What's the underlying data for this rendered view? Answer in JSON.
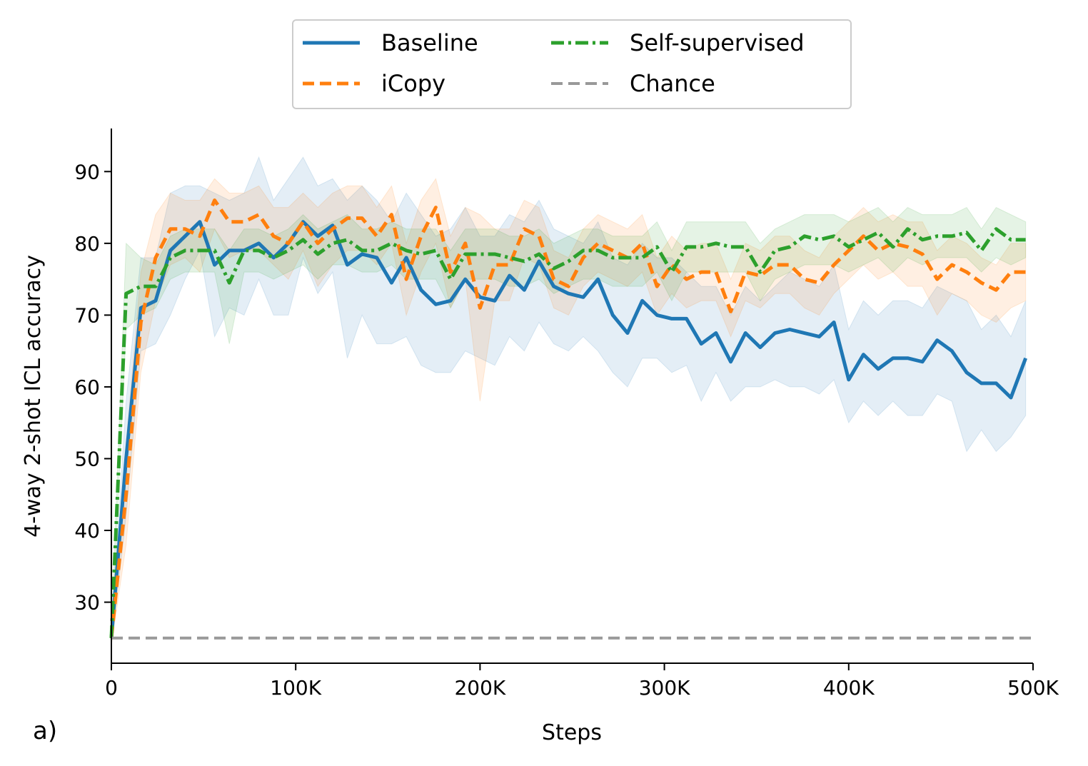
{
  "chart_data": {
    "type": "line",
    "panel_label": "a)",
    "xlabel": "Steps",
    "ylabel": "4-way 2-shot ICL accuracy",
    "xlim": [
      0,
      500000
    ],
    "ylim": [
      21.5,
      96
    ],
    "x_ticks": [
      0,
      100000,
      200000,
      300000,
      400000,
      500000
    ],
    "x_tick_labels": [
      "0",
      "100K",
      "200K",
      "300K",
      "400K",
      "500K"
    ],
    "y_ticks": [
      30,
      40,
      50,
      60,
      70,
      80,
      90
    ],
    "y_tick_labels": [
      "30",
      "40",
      "50",
      "60",
      "70",
      "80",
      "90"
    ],
    "grid": false,
    "legend_position": "top-center",
    "x": [
      0,
      8000,
      16000,
      24000,
      32000,
      40000,
      48000,
      56000,
      64000,
      72000,
      80000,
      88000,
      96000,
      104000,
      112000,
      120000,
      128000,
      136000,
      144000,
      152000,
      160000,
      168000,
      176000,
      184000,
      192000,
      200000,
      208000,
      216000,
      224000,
      232000,
      240000,
      248000,
      256000,
      264000,
      272000,
      280000,
      288000,
      296000,
      304000,
      312000,
      320000,
      328000,
      336000,
      344000,
      352000,
      360000,
      368000,
      376000,
      384000,
      392000,
      400000,
      408000,
      416000,
      424000,
      432000,
      440000,
      448000,
      456000,
      464000,
      472000,
      480000,
      488000,
      496000
    ],
    "series": [
      {
        "name": "Baseline",
        "color": "#1f77b4",
        "style": "solid",
        "values": [
          25,
          50,
          71,
          72,
          79,
          81,
          83,
          77,
          79,
          79,
          80,
          78,
          80,
          83,
          81,
          82.5,
          77,
          78.5,
          78,
          74.5,
          78,
          73.5,
          71.5,
          72,
          75,
          72.5,
          72,
          75.5,
          73.5,
          77.5,
          74,
          73,
          72.5,
          75,
          70,
          67.5,
          72,
          70,
          69.5,
          69.5,
          66,
          67.5,
          63.5,
          67.5,
          65.5,
          67.5,
          68,
          67.5,
          67,
          69,
          61,
          64.5,
          62.5,
          64,
          64,
          63.5,
          66.5,
          65,
          62,
          60.5,
          60.5,
          58.5,
          64
        ],
        "band_lower": [
          24,
          42,
          65,
          66,
          70,
          75,
          79,
          67,
          71,
          70,
          75,
          70,
          70,
          78,
          73,
          76,
          64,
          70,
          66,
          66,
          67,
          63,
          62,
          62,
          65,
          64,
          63,
          67,
          65,
          69,
          66,
          65,
          67,
          65,
          62,
          60,
          64,
          64,
          62,
          63,
          58,
          62,
          58,
          60,
          60,
          61,
          60,
          60,
          59,
          61,
          55,
          58,
          56,
          58,
          56,
          56,
          59,
          58,
          51,
          54,
          51,
          53,
          56
        ],
        "band_upper": [
          26,
          58,
          78,
          78,
          87,
          88,
          88,
          87,
          86,
          87,
          92,
          86,
          89,
          92,
          88,
          89,
          86,
          88,
          86,
          83,
          87,
          84,
          81,
          82,
          85,
          81,
          81,
          84,
          83,
          86,
          82,
          81,
          80,
          83,
          78,
          77,
          80,
          78,
          78,
          76,
          74,
          74,
          70,
          74,
          72,
          74,
          76,
          75,
          74,
          77,
          68,
          72,
          70,
          72,
          72,
          71,
          74,
          73,
          72,
          68,
          70,
          67,
          72
        ]
      },
      {
        "name": "iCopy",
        "color": "#ff7f0e",
        "style": "dashed",
        "values": [
          25,
          45,
          69,
          78,
          82,
          82,
          81,
          86,
          83,
          83,
          84,
          81,
          80,
          83,
          80,
          82,
          83.5,
          83.5,
          81,
          84,
          75,
          81,
          85,
          76,
          80,
          71,
          77,
          77,
          82,
          81,
          75,
          74,
          78,
          80,
          79,
          78,
          80,
          74,
          77,
          75,
          76,
          76,
          70.5,
          76,
          75.5,
          77,
          77,
          75,
          74.5,
          77,
          79,
          81,
          79,
          80,
          79.5,
          78.5,
          75,
          77,
          76,
          74.5,
          73.5,
          76,
          76
        ],
        "band_lower": [
          24,
          38,
          62,
          72,
          77,
          78,
          76,
          82,
          78,
          79,
          79,
          77,
          75,
          79,
          74,
          77,
          79,
          79,
          77,
          80,
          70,
          76,
          80,
          71,
          75,
          58,
          72,
          72,
          78,
          77,
          71,
          70,
          74,
          76,
          75,
          74,
          76,
          70,
          73,
          71,
          72,
          72,
          67,
          72,
          71,
          73,
          73,
          71,
          70,
          73,
          75,
          77,
          75,
          76,
          74,
          74,
          70,
          73,
          72,
          70,
          69,
          71,
          72
        ],
        "band_upper": [
          26,
          52,
          76,
          84,
          87,
          86,
          86,
          89,
          87,
          87,
          88,
          85,
          85,
          87,
          85,
          87,
          88,
          88,
          85,
          88,
          80,
          86,
          89,
          81,
          85,
          84,
          82,
          82,
          86,
          85,
          79,
          78,
          82,
          84,
          83,
          82,
          84,
          78,
          81,
          79,
          80,
          80,
          75,
          80,
          79,
          81,
          81,
          79,
          78,
          81,
          83,
          85,
          83,
          84,
          83,
          83,
          79,
          81,
          80,
          78,
          77,
          80,
          80
        ]
      },
      {
        "name": "Self-supervised",
        "color": "#2ca02c",
        "style": "dashdot",
        "values": [
          25,
          73,
          74,
          74,
          78,
          79,
          79,
          79,
          74.5,
          79,
          79,
          78,
          79,
          80.5,
          78.5,
          80,
          80.5,
          79,
          79,
          80,
          79,
          78.5,
          79,
          75,
          78.5,
          78.5,
          78.5,
          78,
          77.5,
          78.5,
          76.5,
          77.5,
          79,
          79,
          78,
          78,
          78,
          79.5,
          76,
          79.5,
          79.5,
          80,
          79.5,
          79.5,
          76,
          79,
          79.5,
          81,
          80.5,
          81,
          79.5,
          80.5,
          81.5,
          79.5,
          82,
          80.5,
          81,
          81,
          81.5,
          79,
          82,
          80.5,
          80.5
        ],
        "band_lower": [
          24,
          68,
          70,
          71,
          75,
          76,
          76,
          76,
          66,
          76,
          76,
          75,
          76,
          77,
          75,
          77,
          77,
          76,
          76,
          77,
          75,
          75,
          75,
          71,
          75,
          75,
          75,
          74,
          74,
          75,
          73,
          74,
          75,
          75,
          74,
          74,
          74,
          76,
          72,
          76,
          76,
          76,
          76,
          76,
          72,
          75,
          76,
          77,
          77,
          77,
          76,
          77,
          78,
          76,
          78,
          77,
          78,
          78,
          78,
          76,
          78,
          77,
          78
        ],
        "band_upper": [
          26,
          80,
          78,
          77,
          81,
          82,
          82,
          82,
          79,
          82,
          82,
          81,
          82,
          84,
          82,
          83,
          84,
          82,
          82,
          83,
          82,
          82,
          82,
          79,
          82,
          82,
          82,
          81,
          81,
          82,
          80,
          81,
          82,
          82,
          81,
          81,
          81,
          83,
          79,
          83,
          83,
          83,
          83,
          83,
          80,
          82,
          83,
          84,
          84,
          84,
          83,
          84,
          85,
          83,
          85,
          84,
          84,
          84,
          85,
          82,
          85,
          84,
          83
        ]
      },
      {
        "name": "Chance",
        "color": "#999999",
        "style": "dashed",
        "values": [
          25,
          25,
          25,
          25,
          25,
          25,
          25,
          25,
          25,
          25,
          25,
          25,
          25,
          25,
          25,
          25,
          25,
          25,
          25,
          25,
          25,
          25,
          25,
          25,
          25,
          25,
          25,
          25,
          25,
          25,
          25,
          25,
          25,
          25,
          25,
          25,
          25,
          25,
          25,
          25,
          25,
          25,
          25,
          25,
          25,
          25,
          25,
          25,
          25,
          25,
          25,
          25,
          25,
          25,
          25,
          25,
          25,
          25,
          25,
          25,
          25,
          25,
          25
        ]
      }
    ]
  }
}
